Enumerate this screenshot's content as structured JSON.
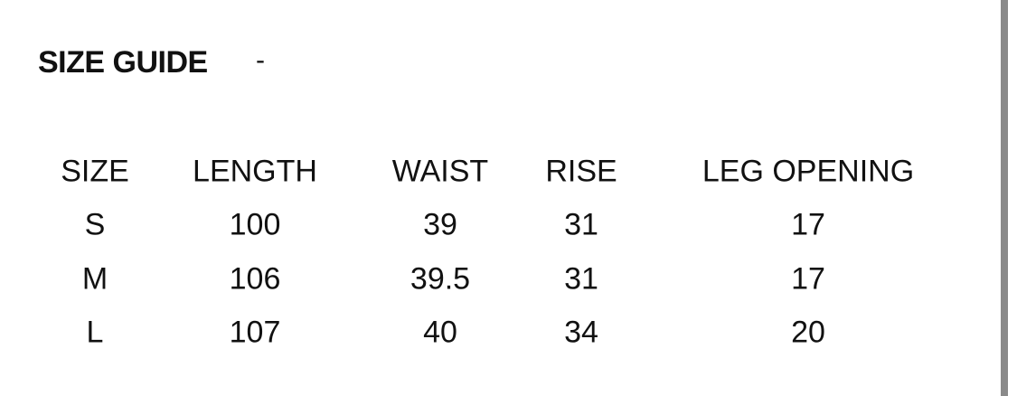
{
  "title": "SIZE GUIDE",
  "title_suffix": "-",
  "table": {
    "headers": [
      "SIZE",
      "LENGTH",
      "WAIST",
      "RISE",
      "LEG OPENING"
    ],
    "rows": [
      [
        "S",
        "100",
        "39",
        "31",
        "17"
      ],
      [
        "M",
        "106",
        "39.5",
        "31",
        "17"
      ],
      [
        "L",
        "107",
        "40",
        "34",
        "20"
      ]
    ]
  }
}
